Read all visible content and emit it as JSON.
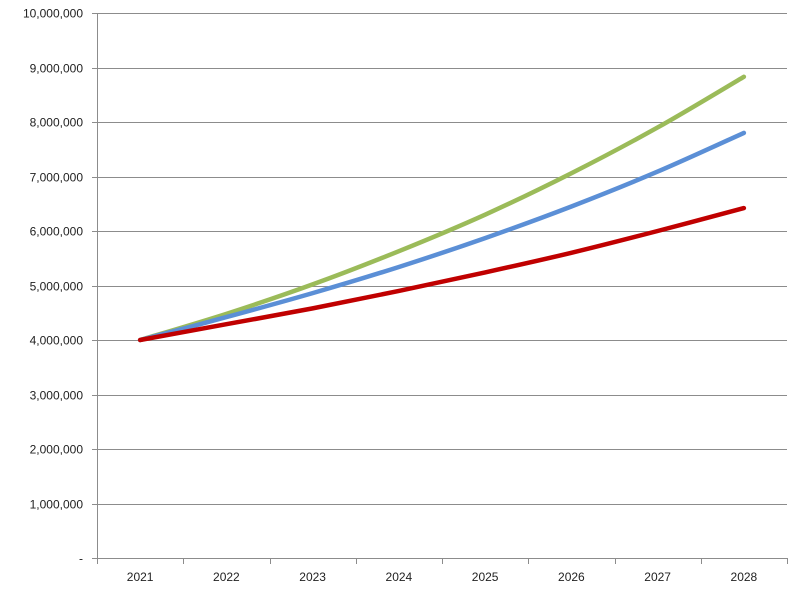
{
  "chart_data": {
    "type": "line",
    "categories": [
      "2021",
      "2022",
      "2023",
      "2024",
      "2025",
      "2026",
      "2027",
      "2028"
    ],
    "series": [
      {
        "color": "#9bbb59",
        "values": [
          4000000,
          4480000,
          5020000,
          5630000,
          6300000,
          7060000,
          7900000,
          8830000
        ]
      },
      {
        "color": "#5b8fd6",
        "values": [
          4000000,
          4420000,
          4860000,
          5340000,
          5870000,
          6450000,
          7090000,
          7800000
        ]
      },
      {
        "color": "#c00000",
        "values": [
          4000000,
          4290000,
          4580000,
          4900000,
          5240000,
          5600000,
          6000000,
          6420000
        ]
      }
    ],
    "ylim": [
      0,
      10000000
    ],
    "yticks": [
      {
        "value": 0,
        "label": "-"
      },
      {
        "value": 1000000,
        "label": "1,000,000"
      },
      {
        "value": 2000000,
        "label": "2,000,000"
      },
      {
        "value": 3000000,
        "label": "3,000,000"
      },
      {
        "value": 4000000,
        "label": "4,000,000"
      },
      {
        "value": 5000000,
        "label": "5,000,000"
      },
      {
        "value": 6000000,
        "label": "6,000,000"
      },
      {
        "value": 7000000,
        "label": "7,000,000"
      },
      {
        "value": 8000000,
        "label": "8,000,000"
      },
      {
        "value": 9000000,
        "label": "9,000,000"
      },
      {
        "value": 10000000,
        "label": "10,000,000"
      }
    ],
    "grid": true,
    "legend": "none"
  }
}
